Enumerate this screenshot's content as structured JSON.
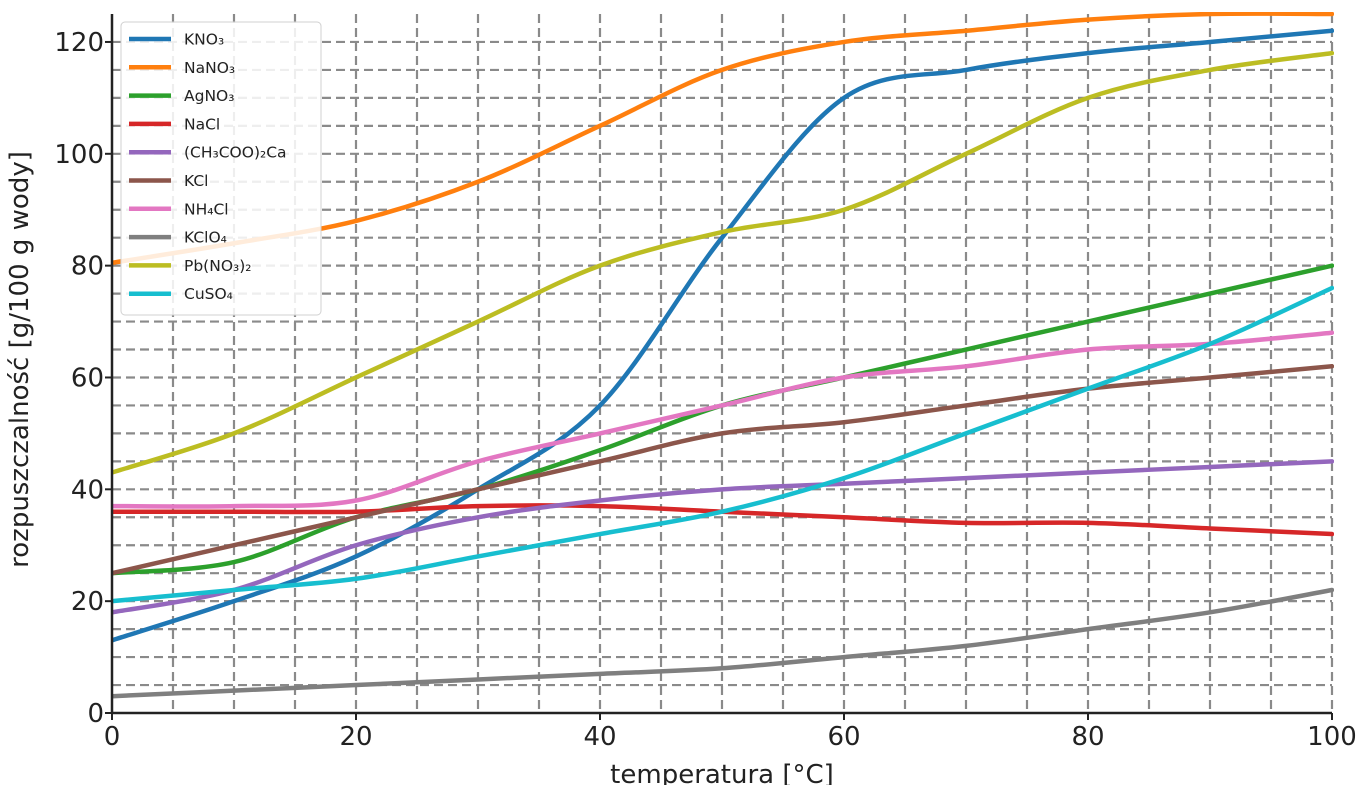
{
  "chart_data": {
    "type": "line",
    "title": "",
    "xlabel": "temperatura [°C]",
    "ylabel": "rozpuszczalność [g/100 g wody]",
    "xlim": [
      0,
      100
    ],
    "ylim": [
      0,
      125
    ],
    "x_ticks": [
      "0",
      "20",
      "40",
      "60",
      "80",
      "100"
    ],
    "y_ticks": [
      "0",
      "20",
      "40",
      "60",
      "80",
      "100",
      "120"
    ],
    "grid": true,
    "grid_x_step": 5,
    "grid_y_step": 5,
    "legend_position": "top-left",
    "x": [
      0,
      10,
      20,
      30,
      40,
      50,
      60,
      70,
      80,
      90,
      100
    ],
    "series": [
      {
        "name": "KNO₃",
        "color": "#1f77b4",
        "values": [
          13,
          20,
          28,
          40,
          55,
          85,
          110,
          115,
          118,
          120,
          122
        ]
      },
      {
        "name": "NaNO₃",
        "color": "#ff7f0e",
        "values": [
          80.5,
          84,
          88,
          95,
          105,
          115,
          120,
          122,
          124,
          125,
          125
        ]
      },
      {
        "name": "AgNO₃",
        "color": "#2ca02c",
        "values": [
          25,
          27,
          35,
          40,
          47,
          55,
          60,
          65,
          70,
          75,
          80
        ]
      },
      {
        "name": "NaCl",
        "color": "#d62728",
        "values": [
          36,
          36,
          36,
          37,
          37,
          36,
          35,
          34,
          34,
          33,
          32
        ]
      },
      {
        "name": "(CH₃COO)₂Ca",
        "color": "#9467bd",
        "values": [
          18,
          22,
          30,
          35,
          38,
          40,
          41,
          42,
          43,
          44,
          45
        ]
      },
      {
        "name": "KCl",
        "color": "#8c564b",
        "values": [
          25,
          30,
          35,
          40,
          45,
          50,
          52,
          55,
          58,
          60,
          62
        ]
      },
      {
        "name": "NH₄Cl",
        "color": "#e377c2",
        "values": [
          37,
          37,
          38,
          45,
          50,
          55,
          60,
          62,
          65,
          66,
          68
        ]
      },
      {
        "name": "KClO₄",
        "color": "#7f7f7f",
        "values": [
          3,
          4,
          5,
          6,
          7,
          8,
          10,
          12,
          15,
          18,
          22
        ]
      },
      {
        "name": "Pb(NO₃)₂",
        "color": "#bcbd22",
        "values": [
          43,
          50,
          60,
          70,
          80,
          86,
          90,
          100,
          110,
          115,
          118
        ]
      },
      {
        "name": "CuSO₄",
        "color": "#17becf",
        "values": [
          20,
          22,
          24,
          28,
          32,
          36,
          42,
          50,
          58,
          66,
          76
        ]
      }
    ]
  }
}
